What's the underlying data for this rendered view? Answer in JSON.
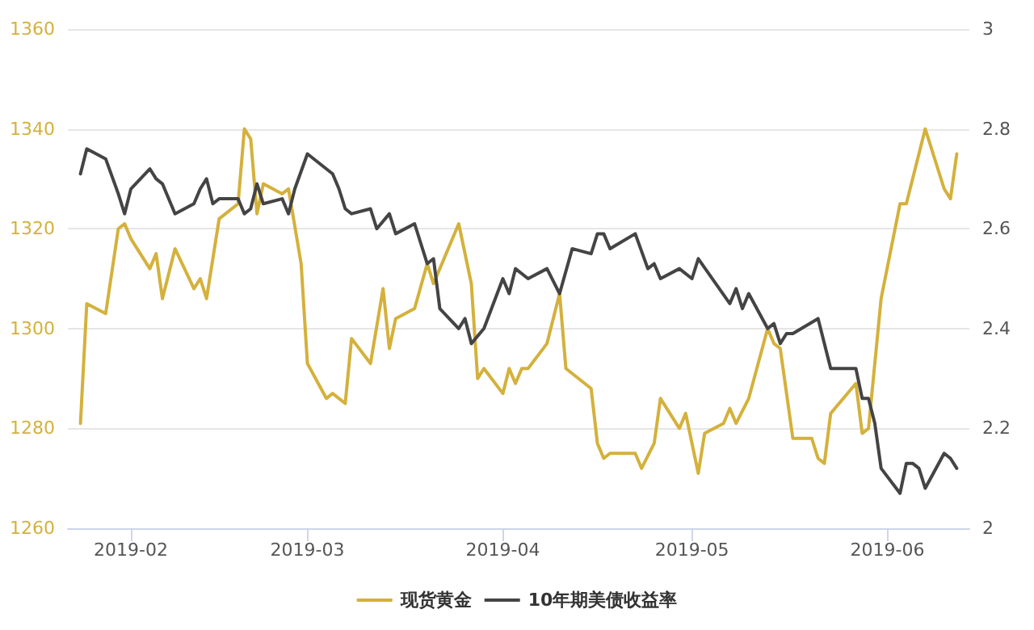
{
  "chart_data": {
    "type": "line",
    "xlim": [
      "2019-01-22",
      "2019-06-14"
    ],
    "xticks": [
      {
        "value": "2019-02-01",
        "label": "2019-02"
      },
      {
        "value": "2019-03-01",
        "label": "2019-03"
      },
      {
        "value": "2019-04-01",
        "label": "2019-04"
      },
      {
        "value": "2019-05-01",
        "label": "2019-05"
      },
      {
        "value": "2019-06-01",
        "label": "2019-06"
      }
    ],
    "ylim": [
      1260,
      1360
    ],
    "yticks": [
      1260,
      1280,
      1300,
      1320,
      1340,
      1360
    ],
    "y2lim": [
      2,
      3
    ],
    "y2ticks": [
      2,
      2.2,
      2.4,
      2.6,
      2.8,
      3
    ],
    "grid": "y",
    "legend": "bottom",
    "marker": "none",
    "line_style": "solid",
    "series": [
      {
        "name": "现货黄金",
        "color": "#d4b13c",
        "x": [
          "2019-01-24",
          "2019-01-25",
          "2019-01-28",
          "2019-01-30",
          "2019-01-31",
          "2019-02-01",
          "2019-02-04",
          "2019-02-05",
          "2019-02-06",
          "2019-02-08",
          "2019-02-11",
          "2019-02-12",
          "2019-02-13",
          "2019-02-15",
          "2019-02-18",
          "2019-02-19",
          "2019-02-20",
          "2019-02-21",
          "2019-02-22",
          "2019-02-25",
          "2019-02-26",
          "2019-02-28",
          "2019-03-01",
          "2019-03-04",
          "2019-03-05",
          "2019-03-07",
          "2019-03-08",
          "2019-03-11",
          "2019-03-13",
          "2019-03-14",
          "2019-03-15",
          "2019-03-18",
          "2019-03-20",
          "2019-03-21",
          "2019-03-25",
          "2019-03-27",
          "2019-03-28",
          "2019-03-29",
          "2019-04-01",
          "2019-04-02",
          "2019-04-03",
          "2019-04-04",
          "2019-04-05",
          "2019-04-08",
          "2019-04-10",
          "2019-04-11",
          "2019-04-15",
          "2019-04-16",
          "2019-04-17",
          "2019-04-18",
          "2019-04-22",
          "2019-04-23",
          "2019-04-25",
          "2019-04-26",
          "2019-04-29",
          "2019-04-30",
          "2019-05-02",
          "2019-05-03",
          "2019-05-06",
          "2019-05-07",
          "2019-05-08",
          "2019-05-10",
          "2019-05-13",
          "2019-05-14",
          "2019-05-15",
          "2019-05-17",
          "2019-05-20",
          "2019-05-21",
          "2019-05-22",
          "2019-05-23",
          "2019-05-27",
          "2019-05-28",
          "2019-05-29",
          "2019-05-31",
          "2019-06-03",
          "2019-06-04",
          "2019-06-07",
          "2019-06-10",
          "2019-06-11",
          "2019-06-12"
        ],
        "values": [
          1281,
          1305,
          1303,
          1320,
          1321,
          1318,
          1312,
          1315,
          1306,
          1316,
          1308,
          1310,
          1306,
          1322,
          1325,
          1340,
          1338,
          1323,
          1329,
          1327,
          1328,
          1313,
          1293,
          1286,
          1287,
          1285,
          1298,
          1293,
          1308,
          1296,
          1302,
          1304,
          1313,
          1309,
          1321,
          1309,
          1290,
          1292,
          1287,
          1292,
          1289,
          1292,
          1292,
          1297,
          1307,
          1292,
          1288,
          1277,
          1274,
          1275,
          1275,
          1272,
          1277,
          1286,
          1280,
          1283,
          1271,
          1279,
          1281,
          1284,
          1281,
          1286,
          1300,
          1297,
          1296,
          1278,
          1278,
          1274,
          1273,
          1283,
          1289,
          1279,
          1280,
          1306,
          1325,
          1325,
          1340,
          1328,
          1326,
          1335
        ]
      },
      {
        "name": "10年期美债收益率",
        "color": "#444444",
        "axis": "y2",
        "x": [
          "2019-01-24",
          "2019-01-25",
          "2019-01-28",
          "2019-01-30",
          "2019-01-31",
          "2019-02-01",
          "2019-02-04",
          "2019-02-05",
          "2019-02-06",
          "2019-02-08",
          "2019-02-11",
          "2019-02-12",
          "2019-02-13",
          "2019-02-14",
          "2019-02-15",
          "2019-02-18",
          "2019-02-19",
          "2019-02-20",
          "2019-02-21",
          "2019-02-22",
          "2019-02-25",
          "2019-02-26",
          "2019-02-27",
          "2019-03-01",
          "2019-03-05",
          "2019-03-06",
          "2019-03-07",
          "2019-03-08",
          "2019-03-11",
          "2019-03-12",
          "2019-03-14",
          "2019-03-15",
          "2019-03-18",
          "2019-03-20",
          "2019-03-21",
          "2019-03-22",
          "2019-03-25",
          "2019-03-26",
          "2019-03-27",
          "2019-03-29",
          "2019-04-01",
          "2019-04-02",
          "2019-04-03",
          "2019-04-05",
          "2019-04-08",
          "2019-04-10",
          "2019-04-12",
          "2019-04-15",
          "2019-04-16",
          "2019-04-17",
          "2019-04-18",
          "2019-04-22",
          "2019-04-24",
          "2019-04-25",
          "2019-04-26",
          "2019-04-29",
          "2019-05-01",
          "2019-05-02",
          "2019-05-07",
          "2019-05-08",
          "2019-05-09",
          "2019-05-10",
          "2019-05-13",
          "2019-05-14",
          "2019-05-15",
          "2019-05-16",
          "2019-05-17",
          "2019-05-21",
          "2019-05-23",
          "2019-05-27",
          "2019-05-28",
          "2019-05-29",
          "2019-05-30",
          "2019-05-31",
          "2019-06-03",
          "2019-06-04",
          "2019-06-05",
          "2019-06-06",
          "2019-06-07",
          "2019-06-10",
          "2019-06-11",
          "2019-06-12"
        ],
        "values": [
          2.71,
          2.76,
          2.74,
          2.67,
          2.63,
          2.68,
          2.72,
          2.7,
          2.69,
          2.63,
          2.65,
          2.68,
          2.7,
          2.65,
          2.66,
          2.66,
          2.63,
          2.64,
          2.69,
          2.65,
          2.66,
          2.63,
          2.68,
          2.75,
          2.71,
          2.68,
          2.64,
          2.63,
          2.64,
          2.6,
          2.63,
          2.59,
          2.61,
          2.53,
          2.54,
          2.44,
          2.4,
          2.42,
          2.37,
          2.4,
          2.5,
          2.47,
          2.52,
          2.5,
          2.52,
          2.47,
          2.56,
          2.55,
          2.59,
          2.59,
          2.56,
          2.59,
          2.52,
          2.53,
          2.5,
          2.52,
          2.5,
          2.54,
          2.45,
          2.48,
          2.44,
          2.47,
          2.4,
          2.41,
          2.37,
          2.39,
          2.39,
          2.42,
          2.32,
          2.32,
          2.26,
          2.26,
          2.21,
          2.12,
          2.07,
          2.13,
          2.13,
          2.12,
          2.08,
          2.15,
          2.14,
          2.12
        ]
      }
    ]
  }
}
